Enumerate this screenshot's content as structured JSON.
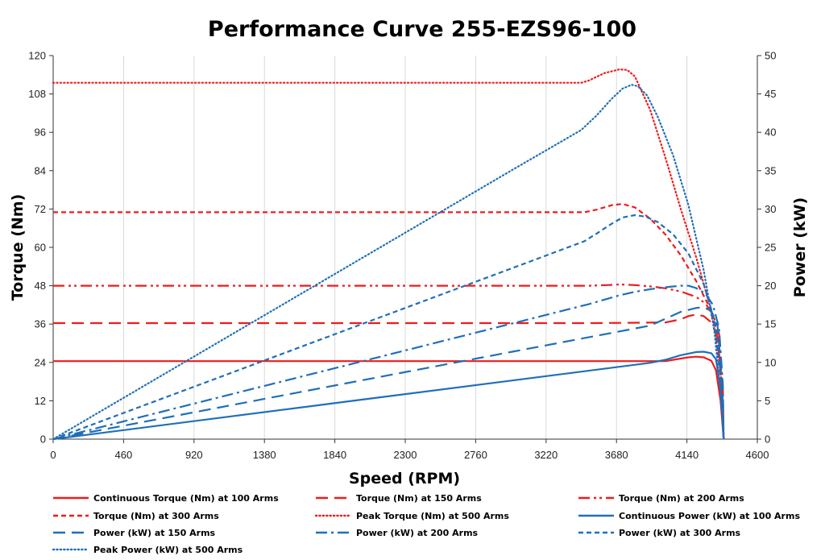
{
  "chart_data": {
    "type": "line",
    "title": "Performance Curve 255-EZS96-100",
    "xlabel": "Speed (RPM)",
    "ylabel": "Torque (Nm)",
    "y2label": "Power (kW)",
    "xlim": [
      0,
      4600
    ],
    "ylim": [
      0,
      120
    ],
    "y2lim": [
      0,
      50
    ],
    "xticks": [
      "0",
      "460",
      "920",
      "1380",
      "1840",
      "2300",
      "2760",
      "3220",
      "3680",
      "4140",
      "4600"
    ],
    "yticks": [
      "0",
      "12",
      "24",
      "36",
      "48",
      "60",
      "72",
      "84",
      "96",
      "108",
      "120"
    ],
    "y2ticks": [
      "0",
      "5",
      "10",
      "15",
      "20",
      "25",
      "30",
      "35",
      "40",
      "45",
      "50"
    ],
    "grid": "vertical",
    "legend_position": "bottom",
    "series": [
      {
        "name": "Continuous Torque (Nm) at 100 Arms",
        "axis": "left",
        "color": "#ee1c1c",
        "style": "solid",
        "x": [
          0,
          3000,
          4000,
          4100,
          4150,
          4200,
          4250,
          4300,
          4330,
          4360,
          4380
        ],
        "y": [
          24.4,
          24.4,
          24.4,
          25.2,
          25.6,
          25.8,
          25.6,
          24.5,
          21.5,
          12,
          0
        ]
      },
      {
        "name": "Torque (Nm) at 150 Arms",
        "axis": "left",
        "color": "#ee1c1c",
        "style": "longdash",
        "x": [
          0,
          3500,
          4000,
          4100,
          4150,
          4200,
          4250,
          4300,
          4340,
          4370,
          4380
        ],
        "y": [
          36.3,
          36.3,
          36.5,
          37.5,
          38.5,
          39,
          38.5,
          36.5,
          32,
          15,
          0
        ]
      },
      {
        "name": "Torque (Nm) at 200 Arms",
        "axis": "left",
        "color": "#ee1c1c",
        "style": "dashdotdot",
        "x": [
          0,
          3500,
          3620,
          3700,
          3800,
          3900,
          4000,
          4100,
          4200,
          4260,
          4310,
          4350,
          4375,
          4380
        ],
        "y": [
          48,
          48,
          48.2,
          48.4,
          48.2,
          47.8,
          47.2,
          46.2,
          44.5,
          42.5,
          39,
          33,
          15,
          0
        ]
      },
      {
        "name": "Torque (Nm) at 300 Arms",
        "axis": "left",
        "color": "#ee1c1c",
        "style": "shortdash",
        "x": [
          0,
          3470,
          3550,
          3650,
          3720,
          3800,
          3900,
          4000,
          4100,
          4200,
          4280,
          4340,
          4370,
          4380
        ],
        "y": [
          71,
          71,
          71.8,
          73.2,
          73.6,
          72.5,
          69,
          64,
          57.5,
          49.5,
          42,
          33,
          15,
          0
        ]
      },
      {
        "name": "Peak Torque (Nm) at 500 Arms",
        "axis": "left",
        "color": "#ee1c1c",
        "style": "dotted",
        "x": [
          0,
          3450,
          3500,
          3600,
          3700,
          3750,
          3800,
          3900,
          4000,
          4100,
          4200,
          4300,
          4360,
          4380
        ],
        "y": [
          111.5,
          111.5,
          112.2,
          114.5,
          115.7,
          115.5,
          113.5,
          103,
          88,
          72,
          57,
          40,
          22,
          0
        ]
      },
      {
        "name": "Continuous Power (kW) at 100 Arms",
        "axis": "right",
        "color": "#1f6fb8",
        "style": "solid",
        "x": [
          0,
          1000,
          2000,
          3000,
          3900,
          4000,
          4100,
          4200,
          4250,
          4300,
          4330,
          4360,
          4380
        ],
        "y": [
          0,
          2.55,
          5.1,
          7.65,
          9.95,
          10.35,
          10.95,
          11.35,
          11.4,
          11.2,
          10.4,
          6.5,
          0
        ]
      },
      {
        "name": "Power (kW) at 150 Arms",
        "axis": "right",
        "color": "#1f6fb8",
        "style": "longdash",
        "x": [
          0,
          1000,
          2000,
          3000,
          3900,
          4000,
          4100,
          4200,
          4250,
          4300,
          4340,
          4370,
          4380
        ],
        "y": [
          0,
          3.8,
          7.6,
          11.4,
          14.8,
          15.7,
          16.6,
          17.1,
          17.2,
          16.7,
          14.8,
          7.5,
          0
        ]
      },
      {
        "name": "Power (kW) at 200 Arms",
        "axis": "right",
        "color": "#1f6fb8",
        "style": "dashdot",
        "x": [
          0,
          1000,
          2000,
          3000,
          3500,
          3700,
          3800,
          3900,
          4000,
          4100,
          4150,
          4200,
          4260,
          4310,
          4350,
          4375,
          4380
        ],
        "y": [
          0,
          5.03,
          10.05,
          15.08,
          17.6,
          18.75,
          19.2,
          19.55,
          19.8,
          20.0,
          20.0,
          19.7,
          19.0,
          17.5,
          14.5,
          7,
          0
        ]
      },
      {
        "name": "Power (kW) at 300 Arms",
        "axis": "right",
        "color": "#1f6fb8",
        "style": "shortdash",
        "x": [
          0,
          1000,
          2000,
          3000,
          3470,
          3550,
          3650,
          3720,
          3800,
          3870,
          3950,
          4050,
          4150,
          4250,
          4320,
          4360,
          4380
        ],
        "y": [
          0,
          7.43,
          14.87,
          22.3,
          25.8,
          26.8,
          28.1,
          28.9,
          29.2,
          29.0,
          28.3,
          26.7,
          24.2,
          20.2,
          15.5,
          8,
          0
        ]
      },
      {
        "name": "Peak Power (kW) at 500 Arms",
        "axis": "right",
        "color": "#1f6fb8",
        "style": "dotted",
        "x": [
          0,
          1000,
          2000,
          3000,
          3450,
          3550,
          3650,
          3720,
          3780,
          3820,
          3880,
          3950,
          4050,
          4150,
          4250,
          4320,
          4360,
          4380
        ],
        "y": [
          0,
          11.7,
          23.4,
          35.1,
          40.3,
          42.2,
          44.4,
          45.7,
          46.2,
          46.0,
          44.8,
          42.0,
          37.0,
          30.5,
          22.0,
          14.0,
          6.0,
          0
        ]
      }
    ]
  }
}
